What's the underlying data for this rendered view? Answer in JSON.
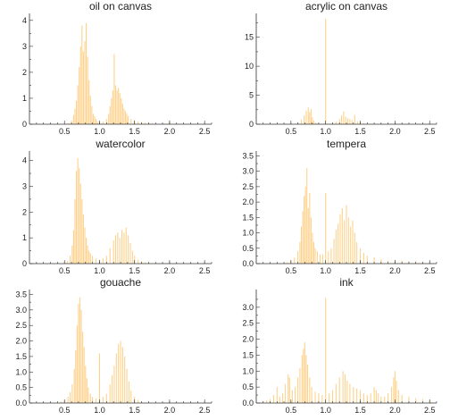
{
  "chart_data": [
    {
      "type": "bar",
      "title": "oil on canvas",
      "xlabel": "",
      "ylabel": "",
      "xlim": [
        0,
        2.6
      ],
      "ylim": [
        0,
        4.2
      ],
      "xticks": [
        0.5,
        1.0,
        1.5,
        2.0,
        2.5
      ],
      "xtick_labels": [
        "0.5",
        "1.0",
        "1.5",
        "2.0",
        "2.5"
      ],
      "yticks": [
        0,
        1,
        2,
        3,
        4
      ],
      "ytick_labels": [
        "0",
        "1",
        "2",
        "3",
        "4"
      ],
      "bars": [
        [
          0.56,
          0.05
        ],
        [
          0.6,
          0.15
        ],
        [
          0.63,
          0.35
        ],
        [
          0.65,
          0.6
        ],
        [
          0.67,
          0.9
        ],
        [
          0.69,
          1.5
        ],
        [
          0.71,
          2.2
        ],
        [
          0.73,
          3.0
        ],
        [
          0.75,
          3.8
        ],
        [
          0.77,
          2.8
        ],
        [
          0.79,
          3.2
        ],
        [
          0.81,
          3.9
        ],
        [
          0.83,
          2.6
        ],
        [
          0.85,
          1.7
        ],
        [
          0.87,
          1.1
        ],
        [
          0.89,
          0.7
        ],
        [
          0.91,
          0.4
        ],
        [
          0.93,
          0.3
        ],
        [
          0.95,
          0.2
        ],
        [
          0.97,
          0.1
        ],
        [
          1.0,
          0.08
        ],
        [
          1.05,
          0.1
        ],
        [
          1.1,
          0.2
        ],
        [
          1.13,
          0.4
        ],
        [
          1.15,
          0.7
        ],
        [
          1.17,
          1.0
        ],
        [
          1.19,
          1.3
        ],
        [
          1.21,
          2.7
        ],
        [
          1.23,
          1.5
        ],
        [
          1.25,
          1.3
        ],
        [
          1.27,
          1.4
        ],
        [
          1.29,
          1.2
        ],
        [
          1.31,
          1.0
        ],
        [
          1.33,
          0.8
        ],
        [
          1.35,
          0.6
        ],
        [
          1.37,
          0.5
        ],
        [
          1.39,
          0.4
        ],
        [
          1.41,
          0.3
        ],
        [
          1.45,
          0.2
        ],
        [
          1.5,
          0.15
        ],
        [
          1.55,
          0.1
        ],
        [
          1.6,
          0.08
        ],
        [
          1.65,
          0.06
        ],
        [
          1.7,
          0.05
        ],
        [
          1.75,
          0.04
        ],
        [
          2.0,
          0.15
        ]
      ]
    },
    {
      "type": "bar",
      "title": "acrylic on canvas",
      "xlabel": "",
      "ylabel": "",
      "xlim": [
        0,
        2.6
      ],
      "ylim": [
        0,
        18.8
      ],
      "xticks": [
        0.5,
        1.0,
        1.5,
        2.0,
        2.5
      ],
      "xtick_labels": [
        "0.5",
        "1.0",
        "1.5",
        "2.0",
        "2.5"
      ],
      "yticks": [
        0,
        5,
        10,
        15
      ],
      "ytick_labels": [
        "0",
        "5",
        "10",
        "15"
      ],
      "bars": [
        [
          0.6,
          0.3
        ],
        [
          0.65,
          0.8
        ],
        [
          0.69,
          1.5
        ],
        [
          0.72,
          2.3
        ],
        [
          0.75,
          2.9
        ],
        [
          0.77,
          2.1
        ],
        [
          0.79,
          2.6
        ],
        [
          0.81,
          1.2
        ],
        [
          0.83,
          0.6
        ],
        [
          0.86,
          0.3
        ],
        [
          1.0,
          18.2
        ],
        [
          1.1,
          0.2
        ],
        [
          1.15,
          0.5
        ],
        [
          1.2,
          0.9
        ],
        [
          1.23,
          1.5
        ],
        [
          1.26,
          2.2
        ],
        [
          1.29,
          1.3
        ],
        [
          1.32,
          1.0
        ],
        [
          1.35,
          0.9
        ],
        [
          1.38,
          0.7
        ],
        [
          1.42,
          1.6
        ],
        [
          1.46,
          0.5
        ],
        [
          1.5,
          0.3
        ],
        [
          1.55,
          0.2
        ]
      ]
    },
    {
      "type": "bar",
      "title": "watercolor",
      "xlabel": "",
      "ylabel": "",
      "xlim": [
        0,
        2.6
      ],
      "ylim": [
        0,
        4.3
      ],
      "xticks": [
        0.5,
        1.0,
        1.5,
        2.0,
        2.5
      ],
      "xtick_labels": [
        "0.5",
        "1.0",
        "1.5",
        "2.0",
        "2.5"
      ],
      "yticks": [
        0,
        1,
        2,
        3,
        4
      ],
      "ytick_labels": [
        "0",
        "1",
        "2",
        "3",
        "4"
      ],
      "bars": [
        [
          0.5,
          0.05
        ],
        [
          0.54,
          0.1
        ],
        [
          0.58,
          0.3
        ],
        [
          0.61,
          0.7
        ],
        [
          0.63,
          1.3
        ],
        [
          0.65,
          2.5
        ],
        [
          0.67,
          3.6
        ],
        [
          0.69,
          4.1
        ],
        [
          0.71,
          3.7
        ],
        [
          0.73,
          3.1
        ],
        [
          0.75,
          2.5
        ],
        [
          0.77,
          1.9
        ],
        [
          0.79,
          1.4
        ],
        [
          0.81,
          1.0
        ],
        [
          0.83,
          0.7
        ],
        [
          0.85,
          0.5
        ],
        [
          0.87,
          0.4
        ],
        [
          0.9,
          0.3
        ],
        [
          0.95,
          0.2
        ],
        [
          1.0,
          0.15
        ],
        [
          1.05,
          0.2
        ],
        [
          1.1,
          0.3
        ],
        [
          1.15,
          0.6
        ],
        [
          1.2,
          0.9
        ],
        [
          1.23,
          1.1
        ],
        [
          1.26,
          1.2
        ],
        [
          1.29,
          1.0
        ],
        [
          1.32,
          1.3
        ],
        [
          1.35,
          1.2
        ],
        [
          1.38,
          1.4
        ],
        [
          1.41,
          1.1
        ],
        [
          1.44,
          0.8
        ],
        [
          1.47,
          0.5
        ],
        [
          1.5,
          0.3
        ],
        [
          1.55,
          0.15
        ],
        [
          1.6,
          0.08
        ],
        [
          1.65,
          0.05
        ]
      ]
    },
    {
      "type": "bar",
      "title": "tempera",
      "xlabel": "",
      "ylabel": "",
      "xlim": [
        0,
        2.6
      ],
      "ylim": [
        0,
        3.6
      ],
      "xticks": [
        0.5,
        1.0,
        1.5,
        2.0,
        2.5
      ],
      "xtick_labels": [
        "0.5",
        "1.0",
        "1.5",
        "2.0",
        "2.5"
      ],
      "yticks": [
        0,
        0.5,
        1.0,
        1.5,
        2.0,
        2.5,
        3.0,
        3.5
      ],
      "ytick_labels": [
        "0.0",
        "0.5",
        "1.0",
        "1.5",
        "2.0",
        "2.5",
        "3.0",
        "3.5"
      ],
      "bars": [
        [
          0.45,
          0.05
        ],
        [
          0.5,
          0.1
        ],
        [
          0.55,
          0.2
        ],
        [
          0.6,
          0.4
        ],
        [
          0.63,
          0.7
        ],
        [
          0.65,
          1.2
        ],
        [
          0.67,
          1.7
        ],
        [
          0.69,
          2.2
        ],
        [
          0.71,
          2.5
        ],
        [
          0.73,
          3.1
        ],
        [
          0.75,
          1.8
        ],
        [
          0.77,
          2.3
        ],
        [
          0.79,
          1.5
        ],
        [
          0.81,
          1.0
        ],
        [
          0.83,
          0.7
        ],
        [
          0.85,
          0.5
        ],
        [
          0.88,
          0.4
        ],
        [
          0.92,
          0.3
        ],
        [
          0.96,
          0.3
        ],
        [
          1.0,
          2.3
        ],
        [
          1.04,
          0.4
        ],
        [
          1.08,
          0.5
        ],
        [
          1.12,
          0.8
        ],
        [
          1.15,
          1.1
        ],
        [
          1.18,
          1.3
        ],
        [
          1.21,
          1.6
        ],
        [
          1.24,
          1.8
        ],
        [
          1.27,
          1.4
        ],
        [
          1.3,
          1.9
        ],
        [
          1.33,
          1.5
        ],
        [
          1.36,
          1.2
        ],
        [
          1.39,
          1.4
        ],
        [
          1.42,
          1.0
        ],
        [
          1.45,
          0.7
        ],
        [
          1.5,
          0.5
        ],
        [
          1.55,
          0.35
        ],
        [
          1.6,
          0.25
        ],
        [
          1.7,
          0.2
        ],
        [
          1.8,
          0.15
        ],
        [
          1.9,
          0.1
        ],
        [
          2.0,
          0.12
        ],
        [
          2.1,
          0.1
        ],
        [
          2.2,
          0.08
        ],
        [
          2.3,
          0.08
        ],
        [
          2.4,
          0.06
        ],
        [
          2.5,
          0.05
        ]
      ]
    },
    {
      "type": "bar",
      "title": "gouache",
      "xlabel": "",
      "ylabel": "",
      "xlim": [
        0,
        2.6
      ],
      "ylim": [
        0,
        3.6
      ],
      "xticks": [
        0.5,
        1.0,
        1.5,
        2.0,
        2.5
      ],
      "xtick_labels": [
        "0.5",
        "1.0",
        "1.5",
        "2.0",
        "2.5"
      ],
      "yticks": [
        0,
        0.5,
        1.0,
        1.5,
        2.0,
        2.5,
        3.0,
        3.5
      ],
      "ytick_labels": [
        "0.0",
        "0.5",
        "1.0",
        "1.5",
        "2.0",
        "2.5",
        "3.0",
        "3.5"
      ],
      "bars": [
        [
          0.45,
          0.05
        ],
        [
          0.5,
          0.1
        ],
        [
          0.55,
          0.2
        ],
        [
          0.58,
          0.35
        ],
        [
          0.61,
          0.6
        ],
        [
          0.64,
          1.1
        ],
        [
          0.66,
          1.7
        ],
        [
          0.68,
          2.5
        ],
        [
          0.7,
          3.2
        ],
        [
          0.72,
          3.4
        ],
        [
          0.74,
          3.0
        ],
        [
          0.76,
          2.3
        ],
        [
          0.78,
          1.8
        ],
        [
          0.8,
          1.2
        ],
        [
          0.82,
          0.8
        ],
        [
          0.84,
          0.5
        ],
        [
          0.87,
          0.3
        ],
        [
          0.9,
          0.2
        ],
        [
          0.95,
          0.15
        ],
        [
          1.0,
          1.6
        ],
        [
          1.05,
          0.2
        ],
        [
          1.1,
          0.3
        ],
        [
          1.15,
          0.6
        ],
        [
          1.18,
          0.9
        ],
        [
          1.21,
          1.2
        ],
        [
          1.24,
          1.6
        ],
        [
          1.27,
          1.9
        ],
        [
          1.3,
          2.0
        ],
        [
          1.33,
          1.8
        ],
        [
          1.36,
          1.5
        ],
        [
          1.39,
          1.1
        ],
        [
          1.42,
          0.7
        ],
        [
          1.45,
          0.4
        ],
        [
          1.5,
          0.2
        ],
        [
          1.55,
          0.1
        ],
        [
          1.6,
          0.05
        ]
      ]
    },
    {
      "type": "bar",
      "title": "ink",
      "xlabel": "",
      "ylabel": "",
      "xlim": [
        0,
        2.6
      ],
      "ylim": [
        0,
        3.5
      ],
      "xticks": [
        0.5,
        1.0,
        1.5,
        2.0,
        2.5
      ],
      "xtick_labels": [
        "0.5",
        "1.0",
        "1.5",
        "2.0",
        "2.5"
      ],
      "yticks": [
        0,
        0.5,
        1.0,
        1.5,
        2.0,
        2.5,
        3.0
      ],
      "ytick_labels": [
        "0.0",
        "0.5",
        "1.0",
        "1.5",
        "2.0",
        "2.5",
        "3.0"
      ],
      "bars": [
        [
          0.1,
          0.05
        ],
        [
          0.15,
          0.08
        ],
        [
          0.2,
          0.12
        ],
        [
          0.25,
          0.25
        ],
        [
          0.3,
          0.5
        ],
        [
          0.34,
          0.2
        ],
        [
          0.38,
          0.3
        ],
        [
          0.42,
          0.6
        ],
        [
          0.46,
          0.9
        ],
        [
          0.48,
          0.8
        ],
        [
          0.52,
          0.4
        ],
        [
          0.56,
          0.5
        ],
        [
          0.6,
          0.8
        ],
        [
          0.63,
          1.1
        ],
        [
          0.66,
          1.5
        ],
        [
          0.68,
          1.7
        ],
        [
          0.7,
          1.9
        ],
        [
          0.72,
          1.5
        ],
        [
          0.74,
          1.2
        ],
        [
          0.77,
          0.8
        ],
        [
          0.8,
          0.5
        ],
        [
          0.85,
          0.35
        ],
        [
          0.9,
          0.3
        ],
        [
          0.95,
          0.25
        ],
        [
          1.0,
          3.3
        ],
        [
          1.05,
          0.3
        ],
        [
          1.1,
          0.4
        ],
        [
          1.15,
          0.6
        ],
        [
          1.2,
          0.8
        ],
        [
          1.25,
          1.0
        ],
        [
          1.28,
          0.9
        ],
        [
          1.31,
          0.7
        ],
        [
          1.35,
          0.6
        ],
        [
          1.4,
          0.5
        ],
        [
          1.45,
          0.45
        ],
        [
          1.5,
          0.4
        ],
        [
          1.55,
          0.3
        ],
        [
          1.6,
          0.25
        ],
        [
          1.65,
          0.3
        ],
        [
          1.7,
          0.5
        ],
        [
          1.73,
          0.4
        ],
        [
          1.76,
          0.3
        ],
        [
          1.8,
          0.2
        ],
        [
          1.85,
          0.2
        ],
        [
          1.9,
          0.3
        ],
        [
          1.95,
          0.5
        ],
        [
          1.98,
          0.8
        ],
        [
          2.0,
          1.0
        ],
        [
          2.02,
          0.7
        ],
        [
          2.05,
          0.4
        ],
        [
          2.1,
          0.25
        ],
        [
          2.2,
          0.2
        ],
        [
          2.3,
          0.15
        ],
        [
          2.4,
          0.12
        ],
        [
          2.5,
          0.1
        ]
      ]
    }
  ],
  "colors": {
    "bar": "#fed28c",
    "axis": "#333333",
    "text": "#222222"
  }
}
